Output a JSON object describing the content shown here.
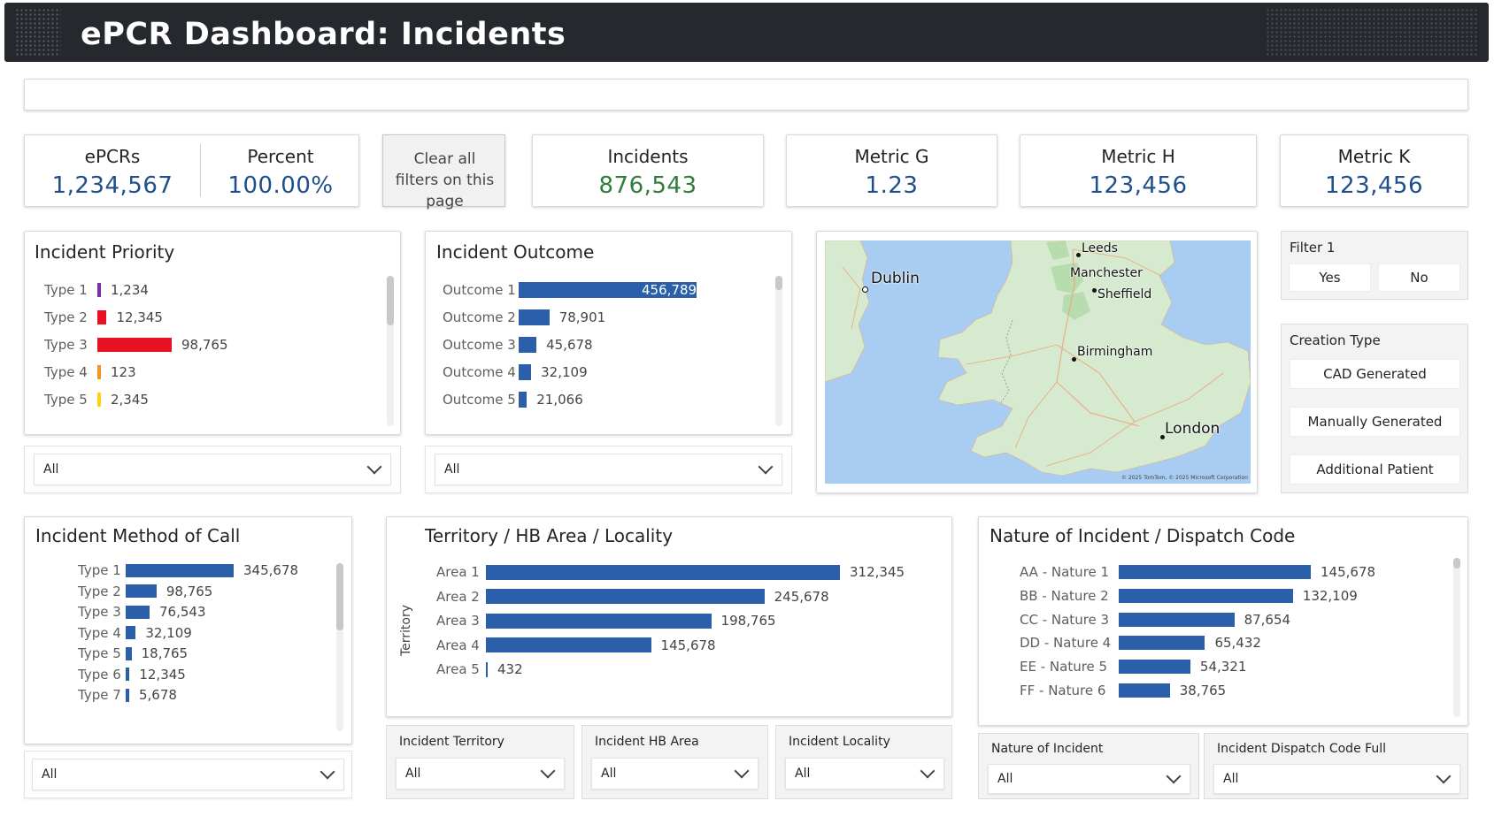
{
  "header": {
    "title": "ePCR Dashboard: Incidents"
  },
  "colors": {
    "accent": "#2b5fa9",
    "header_bg": "#25292d",
    "kpi_blue": "#1f4e8c",
    "kpi_green": "#2f7d3a"
  },
  "kpis": {
    "epcrs": {
      "label": "ePCRs",
      "value": "1,234,567"
    },
    "percent": {
      "label": "Percent",
      "value": "100.00%"
    },
    "clear_filters": "Clear all filters on this page",
    "incidents": {
      "label": "Incidents",
      "value": "876,543"
    },
    "metric_g": {
      "label": "Metric G",
      "value": "1.23"
    },
    "metric_h": {
      "label": "Metric H",
      "value": "123,456"
    },
    "metric_k": {
      "label": "Metric K",
      "value": "123,456"
    }
  },
  "priority": {
    "title": "Incident Priority",
    "rows": [
      {
        "label": "Type 1",
        "value": 1234,
        "display": "1,234",
        "color": "#7b2fa8"
      },
      {
        "label": "Type 2",
        "value": 12345,
        "display": "12,345",
        "color": "#e81123"
      },
      {
        "label": "Type 3",
        "value": 98765,
        "display": "98,765",
        "color": "#e81123"
      },
      {
        "label": "Type 4",
        "value": 123,
        "display": "123",
        "color": "#f7931e"
      },
      {
        "label": "Type 5",
        "value": 2345,
        "display": "2,345",
        "color": "#fcd116"
      }
    ],
    "dropdown": "All"
  },
  "outcome": {
    "title": "Incident Outcome",
    "rows": [
      {
        "label": "Outcome 1",
        "value": 456789,
        "display": "456,789"
      },
      {
        "label": "Outcome 2",
        "value": 78901,
        "display": "78,901"
      },
      {
        "label": "Outcome 3",
        "value": 45678,
        "display": "45,678"
      },
      {
        "label": "Outcome 4",
        "value": 32109,
        "display": "32,109"
      },
      {
        "label": "Outcome 5",
        "value": 21066,
        "display": "21,066"
      }
    ],
    "dropdown": "All"
  },
  "map": {
    "cities": {
      "leeds": "Leeds",
      "dublin": "Dublin",
      "manchester": "Manchester",
      "sheffield": "Sheffield",
      "birmingham": "Birmingham",
      "london": "London"
    },
    "attribution": "© 2025 TomTom, © 2025 Microsoft Corporation"
  },
  "filter1": {
    "title": "Filter 1",
    "yes": "Yes",
    "no": "No"
  },
  "creation_type": {
    "title": "Creation Type",
    "options": [
      "CAD Generated",
      "Manually Generated",
      "Additional Patient"
    ]
  },
  "method": {
    "title": "Incident Method of Call",
    "rows": [
      {
        "label": "Type 1",
        "value": 345678,
        "display": "345,678"
      },
      {
        "label": "Type 2",
        "value": 98765,
        "display": "98,765"
      },
      {
        "label": "Type 3",
        "value": 76543,
        "display": "76,543"
      },
      {
        "label": "Type 4",
        "value": 32109,
        "display": "32,109"
      },
      {
        "label": "Type 5",
        "value": 18765,
        "display": "18,765"
      },
      {
        "label": "Type 6",
        "value": 12345,
        "display": "12,345"
      },
      {
        "label": "Type 7",
        "value": 5678,
        "display": "5,678"
      }
    ],
    "dropdown": "All"
  },
  "territory": {
    "title": "Territory / HB Area / Locality",
    "axis_label": "Territory",
    "rows": [
      {
        "label": "Area 1",
        "value": 312345,
        "display": "312,345"
      },
      {
        "label": "Area 2",
        "value": 245678,
        "display": "245,678"
      },
      {
        "label": "Area 3",
        "value": 198765,
        "display": "198,765"
      },
      {
        "label": "Area 4",
        "value": 145678,
        "display": "145,678"
      },
      {
        "label": "Area 5",
        "value": 432,
        "display": "432"
      }
    ],
    "slicers": [
      {
        "title": "Incident Territory",
        "value": "All"
      },
      {
        "title": "Incident HB Area",
        "value": "All"
      },
      {
        "title": "Incident Locality",
        "value": "All"
      }
    ]
  },
  "nature": {
    "title": "Nature of Incident / Dispatch Code",
    "rows": [
      {
        "label": "AA - Nature 1",
        "value": 145678,
        "display": "145,678"
      },
      {
        "label": "BB - Nature 2",
        "value": 132109,
        "display": "132,109"
      },
      {
        "label": "CC - Nature 3",
        "value": 87654,
        "display": "87,654"
      },
      {
        "label": "DD - Nature 4",
        "value": 65432,
        "display": "65,432"
      },
      {
        "label": "EE - Nature 5",
        "value": 54321,
        "display": "54,321"
      },
      {
        "label": "FF - Nature 6",
        "value": 38765,
        "display": "38,765"
      }
    ],
    "slicers": [
      {
        "title": "Nature of Incident",
        "value": "All"
      },
      {
        "title": "Incident Dispatch Code Full",
        "value": "All"
      }
    ]
  }
}
